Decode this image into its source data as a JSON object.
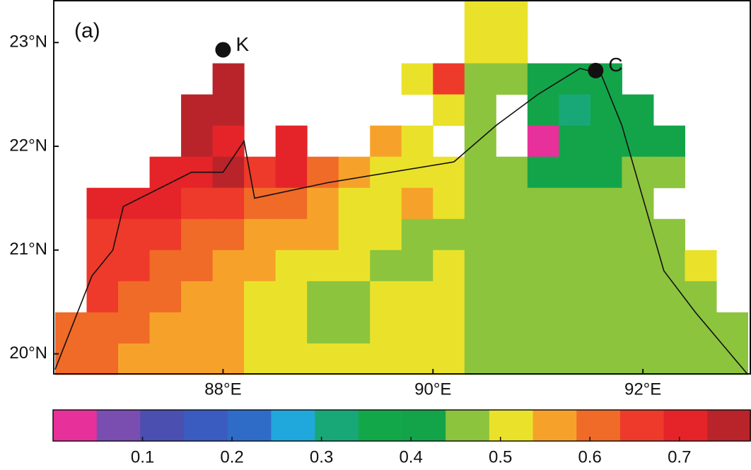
{
  "chart_data": {
    "type": "heatmap",
    "panel_label": "(a)",
    "xlim": [
      86.38,
      93.03
    ],
    "ylim": [
      19.8,
      23.41
    ],
    "xticks": [
      {
        "value": 88,
        "label": "88°E"
      },
      {
        "value": 90,
        "label": "90°E"
      },
      {
        "value": 92,
        "label": "92°E"
      }
    ],
    "yticks": [
      {
        "value": 20,
        "label": "20°N"
      },
      {
        "value": 21,
        "label": "21°N"
      },
      {
        "value": 22,
        "label": "22°N"
      },
      {
        "value": 23,
        "label": "23°N"
      }
    ],
    "x": [
      86.55,
      86.85,
      87.15,
      87.45,
      87.75,
      88.05,
      88.35,
      88.65,
      88.95,
      89.25,
      89.55,
      89.85,
      90.15,
      90.45,
      90.75,
      91.05,
      91.35,
      91.65,
      91.95,
      92.25,
      92.55,
      92.85
    ],
    "y": [
      23.25,
      22.95,
      22.65,
      22.35,
      22.05,
      21.75,
      21.45,
      21.15,
      20.85,
      20.55,
      20.25,
      19.95
    ],
    "z": [
      [
        null,
        null,
        null,
        null,
        null,
        null,
        null,
        null,
        null,
        null,
        null,
        null,
        null,
        0.5,
        0.5,
        null,
        null,
        null,
        null,
        null,
        null,
        null
      ],
      [
        null,
        null,
        null,
        null,
        null,
        null,
        null,
        null,
        null,
        null,
        null,
        null,
        null,
        0.5,
        0.5,
        null,
        null,
        null,
        null,
        null,
        null,
        null
      ],
      [
        null,
        null,
        null,
        null,
        null,
        0.76,
        null,
        null,
        null,
        null,
        null,
        0.5,
        0.66,
        0.45,
        0.45,
        0.4,
        0.4,
        0.4,
        null,
        null,
        null,
        null
      ],
      [
        null,
        null,
        null,
        null,
        0.76,
        0.76,
        null,
        null,
        null,
        null,
        null,
        null,
        0.5,
        0.45,
        null,
        0.4,
        0.3,
        0.4,
        0.4,
        null,
        null,
        null
      ],
      [
        null,
        null,
        null,
        null,
        0.76,
        0.72,
        null,
        0.7,
        null,
        null,
        0.57,
        0.5,
        null,
        0.45,
        null,
        0.02,
        0.4,
        0.4,
        0.4,
        0.4,
        null,
        null
      ],
      [
        null,
        null,
        null,
        0.7,
        0.72,
        0.76,
        0.64,
        0.7,
        0.62,
        0.57,
        0.5,
        0.5,
        0.5,
        0.45,
        0.45,
        0.4,
        0.4,
        0.4,
        0.45,
        0.45,
        null,
        null
      ],
      [
        null,
        0.7,
        0.7,
        0.7,
        0.68,
        0.68,
        0.62,
        0.6,
        0.57,
        0.5,
        0.5,
        0.57,
        0.5,
        0.45,
        0.45,
        0.45,
        0.45,
        0.45,
        0.45,
        null,
        null,
        null
      ],
      [
        null,
        0.68,
        0.68,
        0.66,
        0.62,
        0.6,
        0.57,
        0.57,
        0.55,
        0.5,
        0.5,
        0.45,
        0.45,
        0.45,
        0.45,
        0.45,
        0.45,
        0.45,
        0.45,
        0.45,
        null,
        null
      ],
      [
        null,
        0.66,
        0.64,
        0.62,
        0.6,
        0.57,
        0.55,
        0.5,
        0.5,
        0.5,
        0.45,
        0.45,
        0.5,
        0.45,
        0.45,
        0.45,
        0.45,
        0.45,
        0.45,
        0.45,
        0.5,
        null
      ],
      [
        null,
        0.64,
        0.62,
        0.6,
        0.58,
        0.57,
        0.5,
        0.5,
        0.45,
        0.45,
        0.5,
        0.5,
        0.5,
        0.45,
        0.45,
        0.45,
        0.45,
        0.45,
        0.45,
        0.45,
        0.45,
        null
      ],
      [
        0.62,
        0.6,
        0.6,
        0.58,
        0.57,
        0.55,
        0.5,
        0.5,
        0.45,
        0.45,
        0.5,
        0.5,
        0.5,
        0.45,
        0.45,
        0.45,
        0.45,
        0.45,
        0.45,
        0.45,
        0.45,
        0.45
      ],
      [
        0.6,
        0.6,
        0.58,
        0.58,
        0.57,
        0.56,
        0.5,
        0.5,
        0.5,
        0.5,
        0.5,
        0.5,
        0.5,
        0.45,
        0.45,
        0.45,
        0.45,
        0.45,
        0.45,
        0.45,
        0.45,
        0.45
      ]
    ],
    "clim": [
      0,
      0.78
    ],
    "colors": [
      "#e8309a",
      "#7a4db0",
      "#4a4fb0",
      "#3a5cc0",
      "#2f6cc8",
      "#20a8dc",
      "#18a878",
      "#12a84a",
      "#13a44a",
      "#8cc43e",
      "#eae22a",
      "#f6a22a",
      "#f06a28",
      "#ee3a2a",
      "#e42428",
      "#b8242a"
    ],
    "cticks": [
      0.1,
      0.2,
      0.3,
      0.4,
      0.5,
      0.6,
      0.7
    ],
    "coastline": {
      "lon": [
        86.4,
        86.75,
        86.95,
        87.05,
        87.7,
        88.0,
        88.2,
        88.3,
        89.0,
        90.2,
        90.6,
        91.0,
        91.4,
        91.6,
        91.8,
        92.0,
        92.2,
        92.5,
        93.0
      ],
      "lat": [
        19.85,
        20.75,
        21.0,
        21.42,
        21.75,
        21.75,
        22.05,
        21.5,
        21.65,
        21.85,
        22.2,
        22.5,
        22.75,
        22.7,
        22.2,
        21.5,
        20.8,
        20.4,
        19.8
      ]
    },
    "points": [
      {
        "name": "K",
        "lon": 88.0,
        "lat": 22.93
      },
      {
        "name": "C",
        "lon": 91.55,
        "lat": 22.73
      }
    ]
  }
}
